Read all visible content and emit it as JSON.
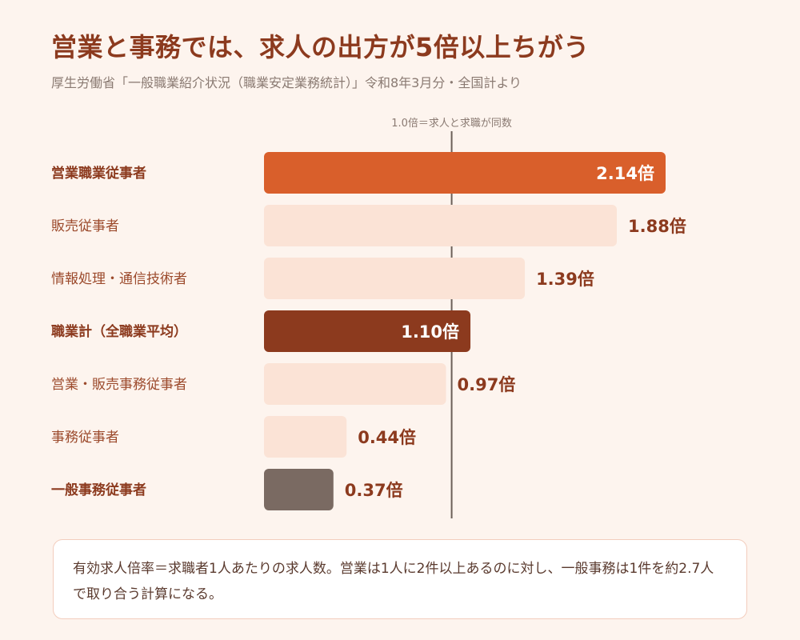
{
  "header": {
    "title": "営業と事務では、求人の出方が5倍以上ちがう",
    "subtitle": "厚生労働省「一般職業紹介状況（職業安定業務統計）」令和8年3月分・全国計より"
  },
  "chart_data": {
    "type": "bar",
    "orientation": "horizontal",
    "title": "営業と事務では、求人の出方が5倍以上ちがう",
    "categories": [
      "営業職業従事者",
      "販売従事者",
      "情報処理・通信技術者",
      "職業計（全職業平均）",
      "営業・販売事務従事者",
      "事務従事者",
      "一般事務従事者"
    ],
    "values": [
      2.14,
      1.88,
      1.39,
      1.1,
      0.97,
      0.44,
      0.37
    ],
    "value_labels": [
      "2.14倍",
      "1.88倍",
      "1.39倍",
      "1.10倍",
      "0.97倍",
      "0.44倍",
      "0.37倍"
    ],
    "highlight": [
      true,
      false,
      false,
      true,
      false,
      false,
      true
    ],
    "bar_colors": [
      "#d95f2b",
      "#fbe3d6",
      "#fbe3d6",
      "#8c3a1e",
      "#fbe3d6",
      "#fbe3d6",
      "#7a6a62"
    ],
    "label_colors": [
      "#ffffff",
      "#8c3a1e",
      "#8c3a1e",
      "#ffffff",
      "#8c3a1e",
      "#8c3a1e",
      "#8c3a1e"
    ],
    "reference_line": {
      "value": 1.0,
      "label": "1.0倍＝求人と求職が同数"
    },
    "xlim": [
      0,
      2.14
    ],
    "grid": false,
    "legend": "none"
  },
  "note": {
    "text": "有効求人倍率＝求職者1人あたりの求人数。営業は1人に2件以上あるのに対し、一般事務は1件を約2.7人で取り合う計算になる。"
  },
  "colors": {
    "background": "#fdf4ee",
    "accent": "#d95f2b",
    "dark": "#8c3a1e",
    "muted": "#7a6a62"
  }
}
